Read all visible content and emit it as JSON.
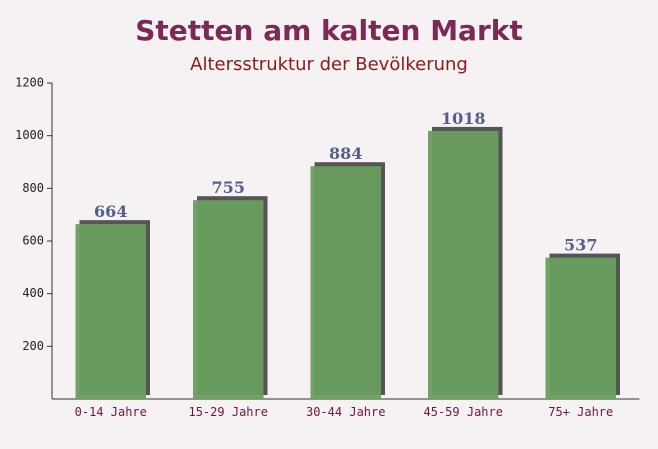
{
  "chart_data": {
    "type": "bar",
    "title": "Stetten am kalten Markt",
    "subtitle": "Altersstruktur der Bevölkerung",
    "categories": [
      "0-14 Jahre",
      "15-29 Jahre",
      "30-44 Jahre",
      "45-59 Jahre",
      "75+ Jahre"
    ],
    "values": [
      664,
      755,
      884,
      1018,
      537
    ],
    "color": "#6a9e5e",
    "ylim": [
      0,
      1200
    ],
    "yticks": [
      200,
      400,
      600,
      800,
      1000,
      1200
    ]
  }
}
